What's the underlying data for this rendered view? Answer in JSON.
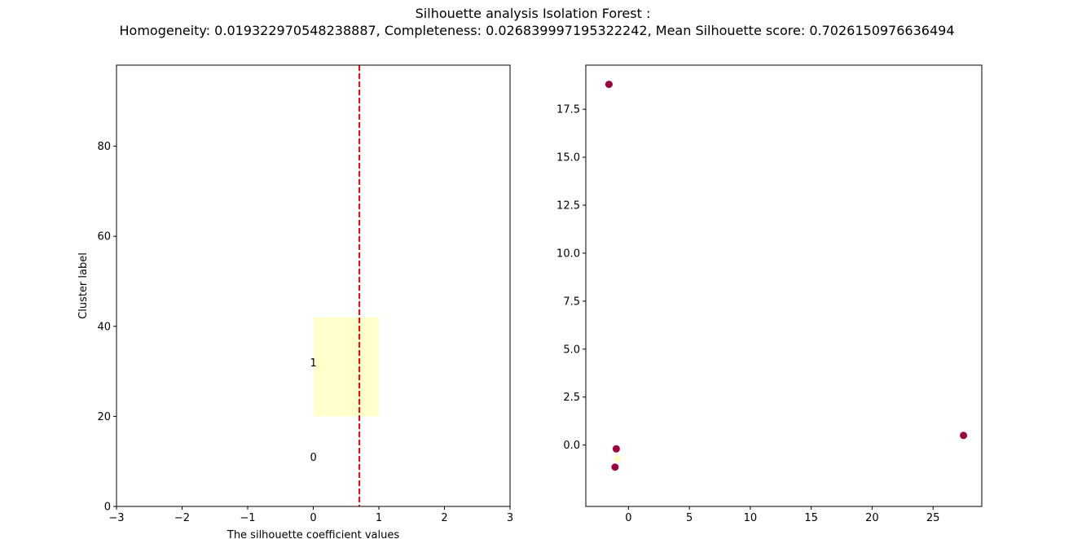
{
  "figure": {
    "title_line1": "Silhouette analysis Isolation Forest :",
    "title_line2": "Homogeneity: 0.019322970548238887, Completeness: 0.026839997195322242, Mean Silhouette score: 0.7026150976636494"
  },
  "chart_data": [
    {
      "type": "bar",
      "subtype": "silhouette",
      "xlabel": "The silhouette coefficient values",
      "ylabel": "Cluster label",
      "xlim": [
        -3,
        3
      ],
      "ylim": [
        0,
        98
      ],
      "xticks": [
        -3,
        -2,
        -1,
        0,
        1,
        2,
        3
      ],
      "xtick_labels": [
        "−3",
        "−2",
        "−1",
        "0",
        "1",
        "2",
        "3"
      ],
      "yticks": [
        0,
        20,
        40,
        60,
        80
      ],
      "ytick_labels": [
        "0",
        "20",
        "40",
        "60",
        "80"
      ],
      "clusters": [
        {
          "label": "0",
          "label_y": 11,
          "x_start": 0,
          "x_end": 0,
          "y_start": 10,
          "y_end": 10,
          "color": "#ffffcc"
        },
        {
          "label": "1",
          "label_y": 32,
          "x_start": 0,
          "x_end": 1.0,
          "y_start": 20,
          "y_end": 42,
          "color": "#ffffcc"
        }
      ],
      "mean_line": {
        "x": 0.7026150976636494,
        "color": "#ff0000",
        "style": "dashed"
      },
      "grid": false
    },
    {
      "type": "scatter",
      "xlim": [
        -3.5,
        29
      ],
      "ylim": [
        -3.2,
        19.8
      ],
      "xticks": [
        0,
        5,
        10,
        15,
        20,
        25
      ],
      "xtick_labels": [
        "0",
        "5",
        "10",
        "15",
        "20",
        "25"
      ],
      "yticks": [
        0,
        2.5,
        5,
        7.5,
        10,
        12.5,
        15,
        17.5
      ],
      "ytick_labels": [
        "0.0",
        "2.5",
        "5.0",
        "7.5",
        "10.0",
        "12.5",
        "15.0",
        "17.5"
      ],
      "points": [
        {
          "x": -1.6,
          "y": 18.8,
          "color": "#9e0142"
        },
        {
          "x": 27.5,
          "y": 0.5,
          "color": "#9e0142"
        },
        {
          "x": -1.0,
          "y": -0.2,
          "color": "#9e0142"
        },
        {
          "x": -1.1,
          "y": -1.15,
          "color": "#9e0142"
        },
        {
          "x": -0.9,
          "y": -0.7,
          "color": "#ffffcc"
        }
      ],
      "grid": false
    }
  ]
}
